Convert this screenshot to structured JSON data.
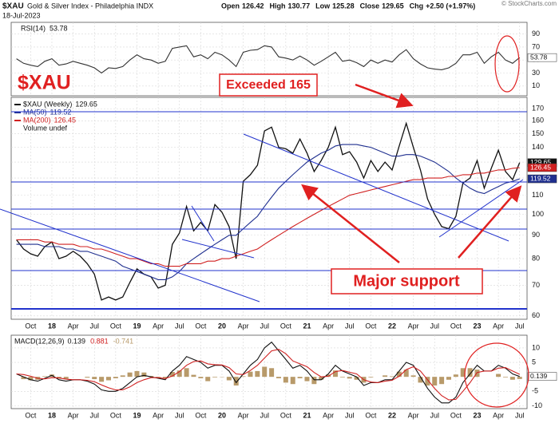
{
  "header": {
    "symbol": "$XAU",
    "name": "Gold & Silver Index - Philadelphia INDX",
    "date": "18-Jul-2023",
    "copyright": "© StockCharts.com",
    "quote": [
      {
        "label": "Open",
        "value": 126.42
      },
      {
        "label": "High",
        "value": 130.77
      },
      {
        "label": "Low",
        "value": 125.28
      },
      {
        "label": "Close",
        "value": 129.65
      },
      {
        "label": "Chg",
        "value": "+2.50 (+1.97%)"
      }
    ]
  },
  "chart_data": [
    {
      "type": "line",
      "ylim": [
        -5,
        108
      ],
      "yticks": [
        10,
        30,
        50,
        70,
        90
      ],
      "xticks": [
        {
          "value": 2,
          "label": "Oct"
        },
        {
          "value": 5,
          "label": "18"
        },
        {
          "value": 8,
          "label": "Apr"
        },
        {
          "value": 11,
          "label": "Jul"
        },
        {
          "value": 14,
          "label": "Oct"
        },
        {
          "value": 17,
          "label": "19"
        },
        {
          "value": 20,
          "label": "Apr"
        },
        {
          "value": 23,
          "label": "Jul"
        },
        {
          "value": 26,
          "label": "Oct"
        },
        {
          "value": 29,
          "label": "20"
        },
        {
          "value": 32,
          "label": "Apr"
        },
        {
          "value": 35,
          "label": "Jul"
        },
        {
          "value": 38,
          "label": "Oct"
        },
        {
          "value": 41,
          "label": "21"
        },
        {
          "value": 44,
          "label": "Apr"
        },
        {
          "value": 47,
          "label": "Jul"
        },
        {
          "value": 50,
          "label": "Oct"
        },
        {
          "value": 53,
          "label": "22"
        },
        {
          "value": 56,
          "label": "Apr"
        },
        {
          "value": 59,
          "label": "Jul"
        },
        {
          "value": 62,
          "label": "Oct"
        },
        {
          "value": 65,
          "label": "23"
        },
        {
          "value": 68,
          "label": "Apr"
        },
        {
          "value": 71,
          "label": "Jul"
        }
      ],
      "series": [
        {
          "name": "RSI(14)",
          "color": "#333333",
          "values": [
            52,
            45,
            42,
            40,
            48,
            52,
            42,
            44,
            48,
            45,
            42,
            38,
            30,
            38,
            37,
            40,
            50,
            58,
            52,
            50,
            45,
            48,
            68,
            70,
            72,
            55,
            58,
            52,
            62,
            58,
            50,
            40,
            62,
            65,
            66,
            72,
            70,
            55,
            53,
            50,
            56,
            50,
            42,
            48,
            55,
            62,
            48,
            50,
            46,
            40,
            50,
            45,
            50,
            47,
            58,
            66,
            52,
            44,
            38,
            36,
            35,
            38,
            45,
            58,
            58,
            62,
            45,
            55,
            62,
            50,
            45,
            53.78
          ]
        }
      ]
    },
    {
      "type": "line",
      "log_scale": true,
      "grid": true,
      "ylim": [
        59,
        180
      ],
      "yticks": [
        60,
        70,
        80,
        90,
        100,
        110,
        120,
        130,
        140,
        150,
        160,
        170
      ],
      "annotations": [
        "$XAU",
        "Exceeded 165",
        "Major support"
      ],
      "volume_label": "Volume undef",
      "series": [
        {
          "name": "$XAU (Weekly)",
          "color": "#111111",
          "values": [
            88,
            84,
            82,
            81,
            85,
            87,
            80,
            81,
            83,
            81,
            78,
            74,
            65,
            66,
            65,
            66,
            71,
            76,
            74,
            73,
            69,
            70,
            86,
            91,
            104,
            92,
            96,
            92,
            105,
            101,
            94,
            80,
            118,
            122,
            128,
            152,
            155,
            140,
            139,
            136,
            146,
            136,
            124,
            131,
            140,
            155,
            135,
            137,
            130,
            120,
            131,
            124,
            130,
            125,
            141,
            158,
            140,
            125,
            108,
            100,
            94,
            93,
            99,
            117,
            120,
            131,
            114,
            126,
            138,
            124,
            119,
            129.65
          ]
        },
        {
          "name": "MA(50)",
          "color": "#1f2f8f",
          "values": [
            86,
            86,
            86,
            86,
            85,
            85,
            85,
            84,
            84,
            83,
            83,
            82,
            81,
            80,
            79,
            77,
            76,
            75,
            74,
            73,
            72,
            72,
            73,
            75,
            78,
            80,
            82,
            84,
            86,
            88,
            90,
            90,
            93,
            96,
            99,
            104,
            109,
            114,
            118,
            122,
            126,
            130,
            133,
            136,
            138,
            141,
            142,
            142,
            142,
            141,
            140,
            138,
            136,
            134,
            134,
            135,
            135,
            134,
            132,
            130,
            127,
            124,
            120,
            117,
            114,
            112,
            111,
            113,
            115,
            117,
            118,
            119.52
          ]
        },
        {
          "name": "MA(200)",
          "color": "#d02020",
          "values": [
            88,
            88,
            88,
            88,
            87,
            87,
            86,
            86,
            86,
            85,
            85,
            84,
            84,
            83,
            82,
            81,
            80,
            80,
            79,
            78,
            78,
            77,
            77,
            77,
            78,
            78,
            78,
            79,
            79,
            80,
            80,
            81,
            82,
            83,
            84,
            86,
            88,
            90,
            92,
            94,
            96,
            98,
            100,
            102,
            104,
            106,
            108,
            110,
            111,
            112,
            113,
            114,
            115,
            116,
            117,
            118,
            119,
            119,
            120,
            120,
            120,
            121,
            121,
            122,
            122,
            123,
            123,
            124,
            125,
            125,
            126,
            126.45
          ]
        }
      ]
    },
    {
      "type": "line",
      "title": "MACD(12,26,9)",
      "ylim": [
        -11,
        14.4
      ],
      "yticks": [
        -10,
        -5,
        5,
        10
      ],
      "series": [
        {
          "type": "bar",
          "color": "#b89a6a",
          "values": [
            0,
            -0.8,
            -1.2,
            -1,
            0.2,
            0.8,
            -0.6,
            -0.7,
            0,
            0,
            -0.3,
            -0.8,
            -1.7,
            -1.2,
            -0.5,
            0.5,
            1.5,
            2,
            1.5,
            0.3,
            -0.2,
            -0.4,
            1.7,
            2.2,
            3,
            0.7,
            -0.5,
            -1.5,
            -0.2,
            -0.1,
            -1.2,
            -3,
            0.2,
            1.8,
            2,
            3.5,
            3,
            -0.5,
            -2,
            -2.5,
            -0.5,
            -1.5,
            -2.5,
            -1,
            0.8,
            2.2,
            -0.2,
            -0.6,
            -1,
            -2,
            -0.2,
            0,
            0.5,
            0.2,
            1.8,
            2.5,
            0.5,
            -2,
            -3,
            -3,
            -2.5,
            -1,
            0.8,
            3,
            3,
            2.5,
            0,
            0,
            1,
            -0.2,
            -1,
            -0.741
          ]
        },
        {
          "color": "#111111",
          "values": [
            1,
            0,
            -1,
            -1.5,
            -0.5,
            0.5,
            -1,
            -1.5,
            -1,
            -1,
            -1.5,
            -2.5,
            -4.5,
            -5,
            -5,
            -4,
            -2,
            0,
            0.5,
            0,
            -0.5,
            -1,
            2,
            4,
            7,
            6,
            5,
            3,
            4,
            4,
            2,
            -2,
            1,
            4,
            6,
            10,
            12,
            9,
            6,
            3,
            4,
            2,
            -1,
            -1,
            1,
            4,
            2,
            1,
            0,
            -3,
            -2,
            -2,
            -1,
            -1,
            2,
            5,
            4,
            0,
            -4,
            -7,
            -9,
            -9,
            -7,
            -2,
            1,
            4,
            2,
            2,
            4,
            3,
            1,
            0.139
          ]
        },
        {
          "color": "#d02020",
          "values": [
            1,
            0.8,
            0.2,
            -0.5,
            -0.7,
            -0.3,
            -0.4,
            -0.8,
            -1,
            -1,
            -1.2,
            -1.7,
            -2.8,
            -3.8,
            -4.5,
            -4.5,
            -3.5,
            -2,
            -1,
            -0.3,
            -0.3,
            -0.6,
            0.3,
            1.8,
            4,
            5.3,
            5.5,
            4.5,
            4.2,
            4.1,
            3.2,
            1,
            0.8,
            2.2,
            4,
            6.5,
            9,
            9.5,
            8,
            5.5,
            4.5,
            3.5,
            1.5,
            0,
            0.2,
            1.8,
            2.2,
            1.6,
            1,
            -1,
            -1.8,
            -2,
            -1.5,
            -1.2,
            0.2,
            2.5,
            3.5,
            2,
            -1,
            -4,
            -6.5,
            -8,
            -7.8,
            -5,
            -2,
            1.5,
            2,
            2,
            3,
            3.2,
            2,
            0.881
          ]
        }
      ]
    }
  ]
}
